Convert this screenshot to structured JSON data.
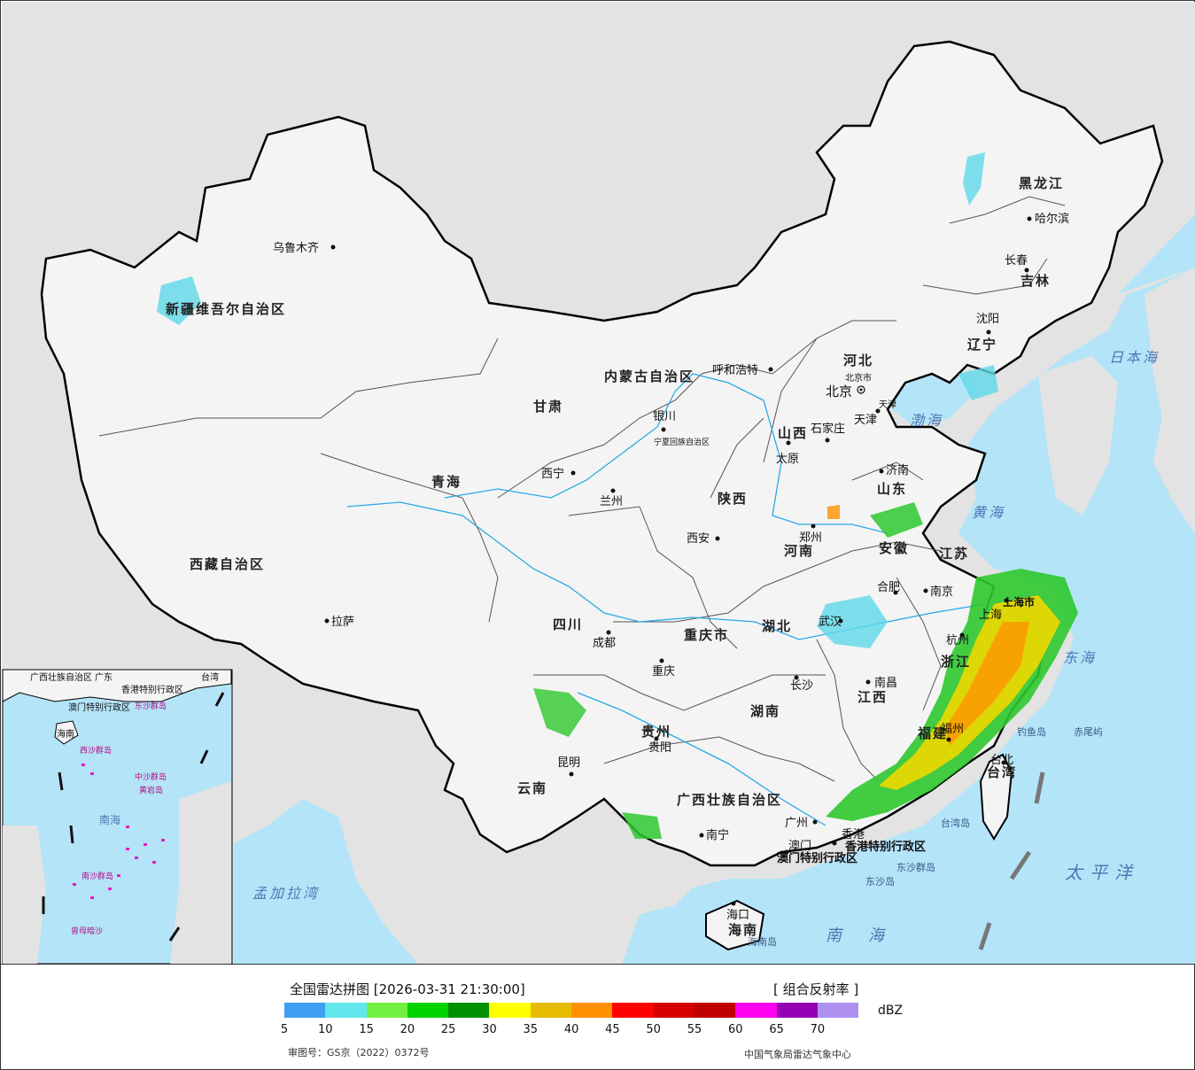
{
  "map": {
    "provinces": [
      "新疆维吾尔自治区",
      "西藏自治区",
      "青海",
      "甘肃",
      "内蒙古自治区",
      "四川",
      "云南",
      "广西壮族自治区",
      "贵州",
      "湖南",
      "湖北",
      "江西",
      "福建",
      "浙江",
      "安徽",
      "江苏",
      "山东",
      "河南",
      "河北",
      "山西",
      "陕西",
      "黑龙江",
      "吉林",
      "辽宁",
      "台湾",
      "海南",
      "宁夏回族自治区",
      "重庆市",
      "香港特别行政区",
      "澳门特别行政区",
      "上海市",
      "北京市",
      "天津"
    ],
    "cities": [
      "乌鲁木齐",
      "拉萨",
      "西宁",
      "兰州",
      "银川",
      "呼和浩特",
      "北京",
      "天津",
      "石家庄",
      "太原",
      "济南",
      "郑州",
      "西安",
      "成都",
      "重庆",
      "贵阳",
      "昆明",
      "南宁",
      "广州",
      "澳门",
      "香港",
      "海口",
      "长沙",
      "武汉",
      "南昌",
      "福州",
      "杭州",
      "合肥",
      "南京",
      "上海",
      "台北",
      "沈阳",
      "长春",
      "哈尔滨"
    ],
    "seas": [
      "日本海",
      "渤海",
      "黄海",
      "东海",
      "南海",
      "太平洋",
      "孟加拉湾"
    ],
    "islands": [
      "钓鱼岛",
      "赤尾屿",
      "台湾岛",
      "东沙群岛",
      "东沙岛",
      "海南岛"
    ],
    "inset": {
      "labels": [
        "广西壮族自治区",
        "广东",
        "台湾",
        "香港特别行政区",
        "澳门特别行政区",
        "海南",
        "南海"
      ],
      "pink_labels": [
        "东沙群岛",
        "西沙群岛",
        "中沙群岛",
        "黄岩岛",
        "南沙群岛",
        "曾母暗沙"
      ]
    }
  },
  "legend": {
    "title": "全国雷达拼图 [2026-03-31 21:30:00]",
    "product": "[ 组合反射率 ]",
    "unit": "dBZ",
    "colors": [
      "#3f9ff0",
      "#63e7ed",
      "#72f042",
      "#00d400",
      "#009000",
      "#ffff00",
      "#e6bd00",
      "#ff9000",
      "#ff0000",
      "#d60000",
      "#c00000",
      "#ff00f0",
      "#9600b4",
      "#ad90f0"
    ],
    "ticks": [
      "5",
      "10",
      "15",
      "20",
      "25",
      "30",
      "35",
      "40",
      "45",
      "50",
      "55",
      "60",
      "65",
      "70"
    ],
    "approval": "审图号：GS京（2022）0372号",
    "organization": "中国气象局雷达气象中心"
  }
}
